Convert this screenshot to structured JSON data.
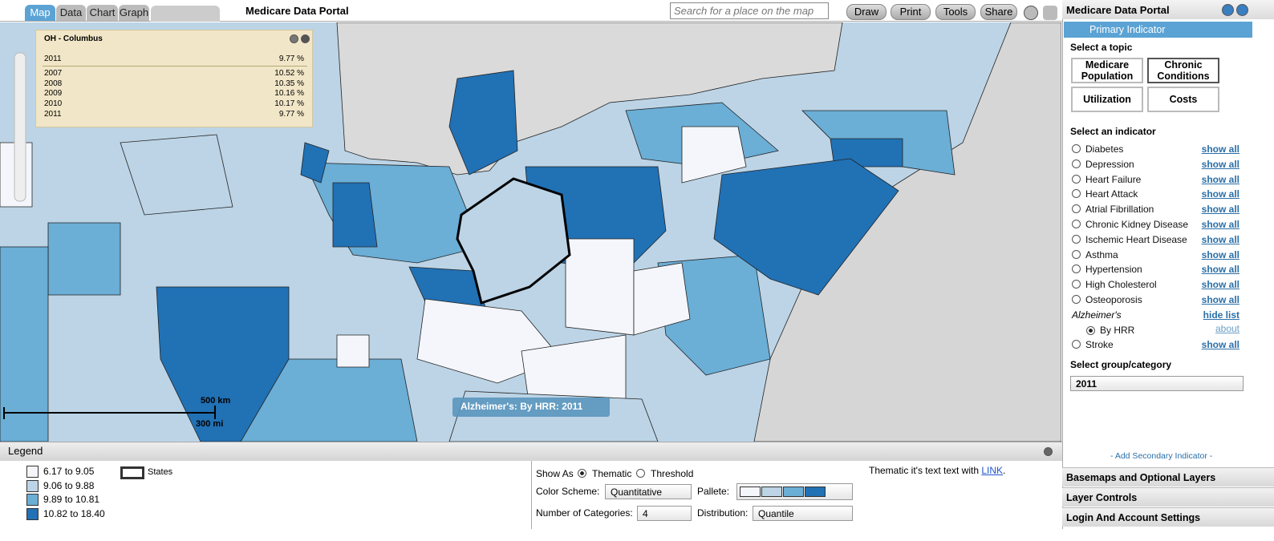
{
  "toolbar": {
    "tabs": [
      "Map",
      "Data",
      "Chart",
      "Graph"
    ],
    "title": "Medicare Data Portal",
    "search_placeholder": "Search for a place on the map",
    "buttons": [
      "Draw",
      "Print",
      "Tools",
      "Share"
    ]
  },
  "popup": {
    "title": "OH - Columbus",
    "current": {
      "year": "2011",
      "value": "9.77 %"
    },
    "rows": [
      {
        "year": "2007",
        "value": "10.52 %"
      },
      {
        "year": "2008",
        "value": "10.35 %"
      },
      {
        "year": "2009",
        "value": "10.16 %"
      },
      {
        "year": "2010",
        "value": "10.17 %"
      },
      {
        "year": "2011",
        "value": "9.77 %"
      }
    ]
  },
  "map": {
    "caption": "Alzheimer's: By HRR: 2011",
    "scale_km": "500 km",
    "scale_mi": "300 mi"
  },
  "legend": {
    "title": "Legend",
    "items": [
      {
        "label": "6.17 to 9.05",
        "color": "#f4f6fb"
      },
      {
        "label": "9.06 to 9.88",
        "color": "#bcd4e6"
      },
      {
        "label": "9.89 to 10.81",
        "color": "#6baed6"
      },
      {
        "label": "10.82 to 18.40",
        "color": "#2171b5"
      }
    ],
    "states": "States"
  },
  "options": {
    "show_as": "Show As",
    "thematic": "Thematic",
    "threshold": "Threshold",
    "color_scheme_label": "Color Scheme:",
    "color_scheme": "Quantitative",
    "pallete_label": "Pallete:",
    "categories_label": "Number of Categories:",
    "categories": "4",
    "distribution_label": "Distribution:",
    "distribution": "Quantile",
    "note": "Thematic it's text text with",
    "link": "LINK",
    "note_end": "."
  },
  "sidebar": {
    "title": "Medicare Data Portal",
    "primary": "Primary Indicator",
    "topic_label": "Select a topic",
    "topics": [
      "Medicare Population",
      "Chronic Conditions",
      "Utilization",
      "Costs"
    ],
    "indicator_label": "Select an indicator",
    "indicators": [
      {
        "name": "Diabetes",
        "action": "show all"
      },
      {
        "name": "Depression",
        "action": "show all"
      },
      {
        "name": "Heart Failure",
        "action": "show all"
      },
      {
        "name": "Heart Attack",
        "action": "show all"
      },
      {
        "name": "Atrial Fibrillation",
        "action": "show all"
      },
      {
        "name": "Chronic Kidney Disease",
        "action": "show all"
      },
      {
        "name": "Ischemic Heart Disease",
        "action": "show all"
      },
      {
        "name": "Asthma",
        "action": "show all"
      },
      {
        "name": "Hypertension",
        "action": "show all"
      },
      {
        "name": "High Cholesterol",
        "action": "show all"
      },
      {
        "name": "Osteoporosis",
        "action": "show all"
      },
      {
        "name": "Alzheimer's",
        "action": "hide list",
        "sub": {
          "name": "By HRR",
          "action": "about"
        }
      },
      {
        "name": "Stroke",
        "action": "show all"
      }
    ],
    "group_label": "Select group/category",
    "group": "2011",
    "secondary": "- Add Secondary Indicator -",
    "sections": [
      "Basemaps and Optional Layers",
      "Layer Controls",
      "Login And Account Settings"
    ]
  }
}
